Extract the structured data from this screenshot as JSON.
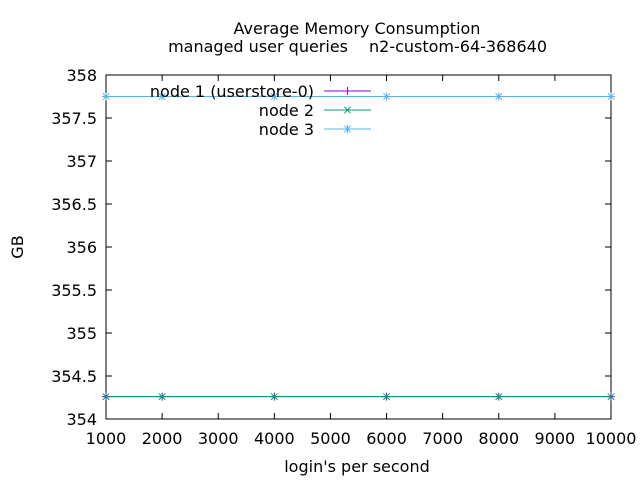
{
  "chart_data": {
    "type": "line",
    "title": "Average Memory Consumption",
    "subtitle_left": "managed user queries",
    "subtitle_right": "n2-custom-64-368640",
    "xlabel": "login's per second",
    "ylabel": "GB",
    "xlim": [
      1000,
      10000
    ],
    "ylim": [
      354,
      358
    ],
    "xticks": [
      "1000",
      "2000",
      "3000",
      "4000",
      "5000",
      "6000",
      "7000",
      "8000",
      "9000",
      "10000"
    ],
    "yticks": [
      "354",
      "354.5",
      "355",
      "355.5",
      "356",
      "356.5",
      "357",
      "357.5",
      "358"
    ],
    "x": [
      1000,
      2000,
      4000,
      6000,
      8000,
      10000
    ],
    "series": [
      {
        "name": "node 1 (userstore-0)",
        "color": "#9400d3",
        "marker": "plus",
        "values": [
          354.26,
          354.26,
          354.26,
          354.26,
          354.26,
          354.26
        ]
      },
      {
        "name": "node 2",
        "color": "#009e73",
        "marker": "cross",
        "values": [
          354.26,
          354.26,
          354.26,
          354.26,
          354.26,
          354.26
        ]
      },
      {
        "name": "node 3",
        "color": "#56b4e9",
        "marker": "star",
        "values": [
          357.75,
          357.75,
          357.75,
          357.75,
          357.75,
          357.75
        ]
      }
    ],
    "legend_position": "top-left",
    "grid": false
  }
}
